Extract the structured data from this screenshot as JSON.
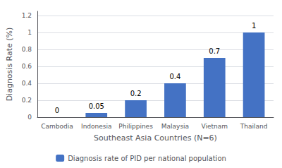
{
  "chart_data": {
    "type": "bar",
    "categories": [
      "Cambodia",
      "Indonesia",
      "Philippines",
      "Malaysia",
      "Vietnam",
      "Thailand"
    ],
    "series": [
      {
        "name": "Diagnosis rate of PID per national population",
        "color": "#4472C4",
        "values": [
          0,
          0.05,
          0.2,
          0.4,
          0.7,
          1.0
        ]
      }
    ],
    "xlabel": "Southeast Asia Countries (N=6)",
    "ylabel": "Diagnosis Rate (%)",
    "ylim": [
      0,
      1.25
    ],
    "yticks": [
      0,
      0.2,
      0.4,
      0.6,
      0.8,
      1,
      1.2
    ],
    "grid": true,
    "legend": "bottom",
    "data_labels": true
  }
}
